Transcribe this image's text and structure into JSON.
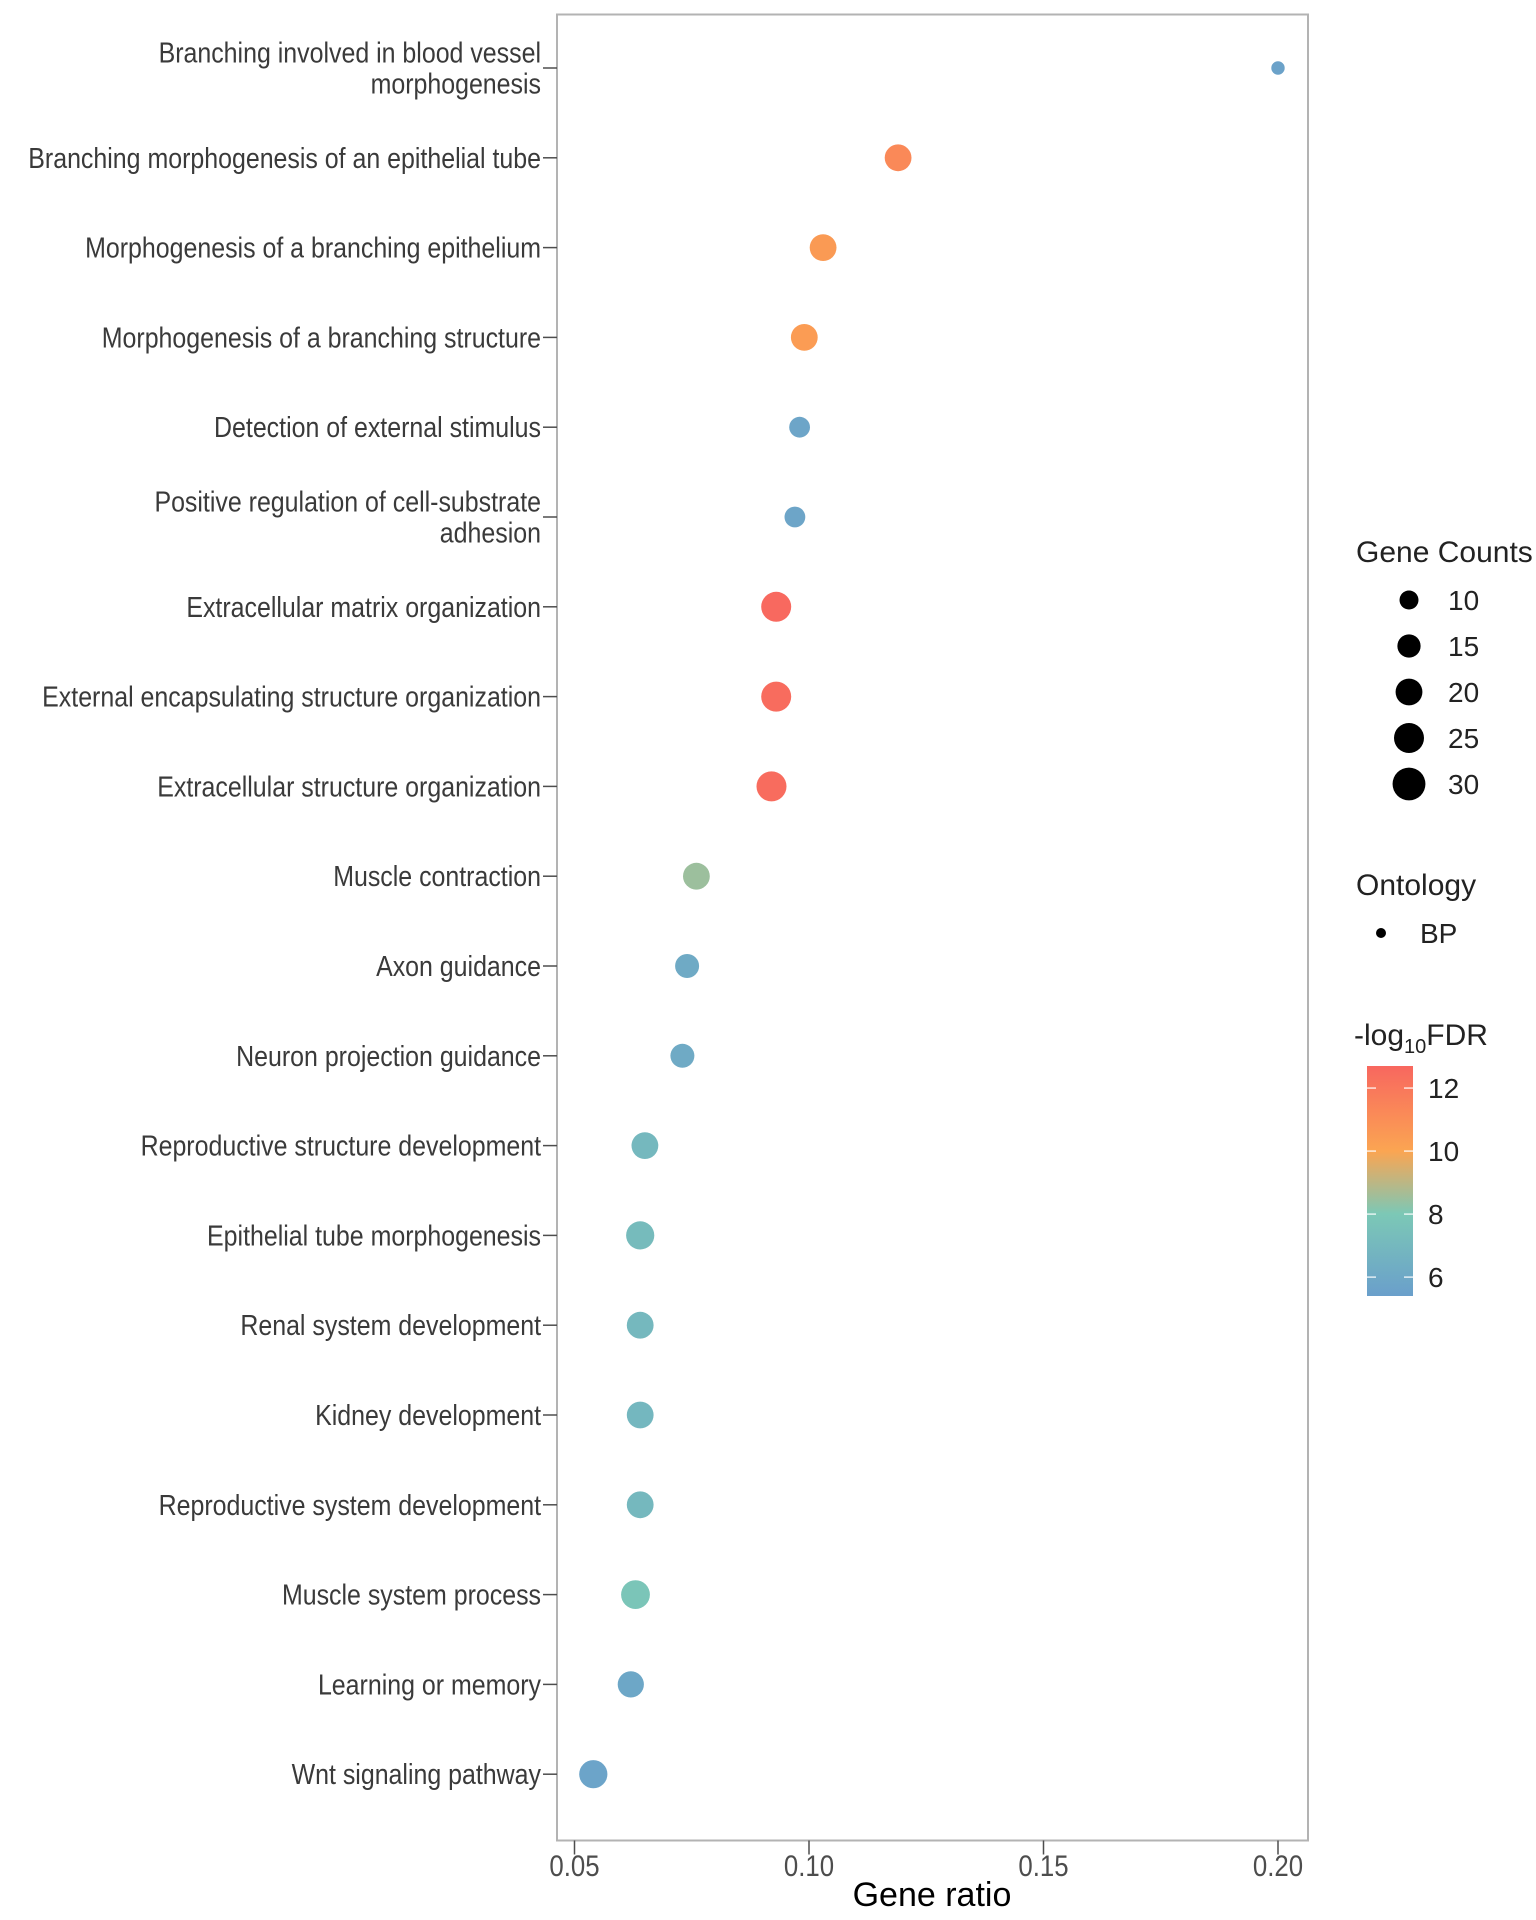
{
  "chart_data": {
    "type": "scatter",
    "subtype": "dot-plot",
    "title": "",
    "xlabel": "Gene ratio",
    "ylabel": "",
    "xlim": [
      0.046,
      0.208
    ],
    "xticks": [
      0.05,
      0.1,
      0.15,
      0.2
    ],
    "xtick_labels": [
      "0.05",
      "0.10",
      "0.15",
      "0.20"
    ],
    "grid": false,
    "categories": [
      "Branching involved in blood vessel morphogenesis",
      "Branching morphogenesis of an epithelial tube",
      "Morphogenesis of a branching epithelium",
      "Morphogenesis of a branching structure",
      "Detection of external stimulus",
      "Positive regulation of cell-substrate adhesion",
      "Extracellular matrix organization",
      "External encapsulating structure organization",
      "Extracellular structure organization",
      "Muscle contraction",
      "Axon guidance",
      "Neuron projection guidance",
      "Reproductive structure development",
      "Epithelial tube morphogenesis",
      "Renal system development",
      "Kidney development",
      "Reproductive system development",
      "Muscle system process",
      "Learning or memory",
      "Wnt signaling pathway"
    ],
    "category_label_lines": [
      [
        "Branching involved in blood vessel",
        "morphogenesis"
      ],
      [
        "Branching morphogenesis of an epithelial tube"
      ],
      [
        "Morphogenesis of a branching epithelium"
      ],
      [
        "Morphogenesis of a branching structure"
      ],
      [
        "Detection of external stimulus"
      ],
      [
        "Positive regulation of cell-substrate",
        "adhesion"
      ],
      [
        "Extracellular matrix organization"
      ],
      [
        "External encapsulating structure organization"
      ],
      [
        "Extracellular structure organization"
      ],
      [
        "Muscle contraction"
      ],
      [
        "Axon guidance"
      ],
      [
        "Neuron projection guidance"
      ],
      [
        "Reproductive structure development"
      ],
      [
        "Epithelial tube morphogenesis"
      ],
      [
        "Renal system development"
      ],
      [
        "Kidney development"
      ],
      [
        "Reproductive system development"
      ],
      [
        "Muscle system process"
      ],
      [
        "Learning or memory"
      ],
      [
        "Wnt signaling pathway"
      ]
    ],
    "series": [
      {
        "name": "BP",
        "gene_ratio": [
          0.2,
          0.119,
          0.103,
          0.099,
          0.098,
          0.097,
          0.093,
          0.093,
          0.092,
          0.076,
          0.074,
          0.073,
          0.065,
          0.064,
          0.064,
          0.064,
          0.064,
          0.063,
          0.062,
          0.054
        ],
        "gene_counts": [
          5,
          20,
          20,
          20,
          12,
          12,
          25,
          25,
          25,
          20,
          16,
          16,
          20,
          22,
          20,
          20,
          20,
          23,
          19,
          22
        ],
        "neg_log10_fdr": [
          5.6,
          11.2,
          10.5,
          10.4,
          5.8,
          5.8,
          12.6,
          12.5,
          12.5,
          8.5,
          6.1,
          6.1,
          7.0,
          7.2,
          7.0,
          6.9,
          7.0,
          7.8,
          5.9,
          5.7
        ]
      }
    ],
    "legends": {
      "size": {
        "title": "Gene Counts",
        "values": [
          10,
          15,
          20,
          25,
          30
        ],
        "labels": [
          "10",
          "15",
          "20",
          "25",
          "30"
        ]
      },
      "shape": {
        "title": "Ontology",
        "labels": [
          "BP"
        ]
      },
      "color": {
        "title_prefix": "-log",
        "title_subscript": "10",
        "title_suffix": "FDR",
        "range": [
          5.4,
          12.7
        ],
        "ticks": [
          6,
          8,
          10,
          12
        ],
        "tick_labels": [
          "6",
          "8",
          "10",
          "12"
        ],
        "stops": [
          {
            "value": 5.4,
            "color": "#6a9fcb"
          },
          {
            "value": 8.0,
            "color": "#7cc8b6"
          },
          {
            "value": 10.0,
            "color": "#fba552"
          },
          {
            "value": 12.7,
            "color": "#f8675f"
          }
        ]
      },
      "placement": "right"
    }
  }
}
